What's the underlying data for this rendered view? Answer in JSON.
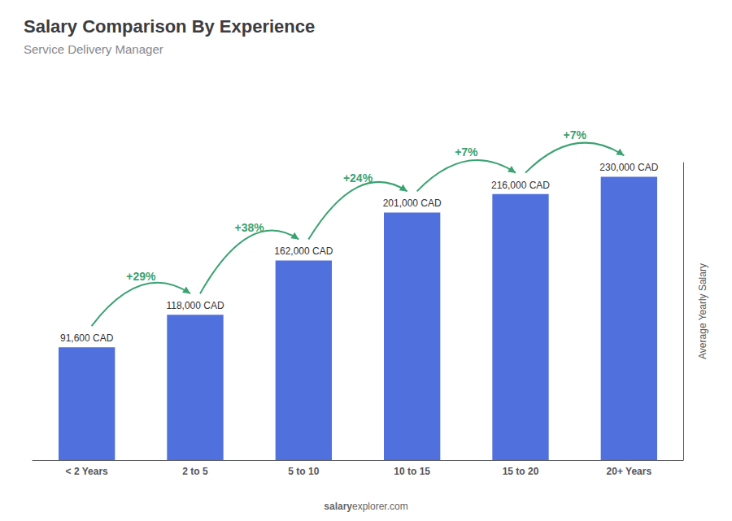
{
  "chart_data": {
    "type": "bar",
    "title": "Salary Comparison By Experience",
    "subtitle": "Service Delivery Manager",
    "ylabel": "Average Yearly Salary",
    "categories": [
      "< 2 Years",
      "2 to 5",
      "5 to 10",
      "10 to 15",
      "15 to 20",
      "20+ Years"
    ],
    "values": [
      91600,
      118000,
      162000,
      201000,
      216000,
      230000
    ],
    "value_labels": [
      "91,600 CAD",
      "118,000 CAD",
      "162,000 CAD",
      "201,000 CAD",
      "216,000 CAD",
      "230,000 CAD"
    ],
    "data_labels": true,
    "ylim": [
      0,
      241500
    ],
    "tick_labels": "x",
    "grid": false,
    "annotations": [
      {
        "text": "+29%",
        "from": "< 2 Years",
        "to": "2 to 5"
      },
      {
        "text": "+38%",
        "from": "2 to 5",
        "to": "5 to 10"
      },
      {
        "text": "+24%",
        "from": "5 to 10",
        "to": "10 to 15"
      },
      {
        "text": "+7%",
        "from": "10 to 15",
        "to": "15 to 20"
      },
      {
        "text": "+7%",
        "from": "15 to 20",
        "to": "20+ Years"
      },
      {
        "text": "salary"
      },
      {
        "text": "explorer.com"
      }
    ]
  }
}
